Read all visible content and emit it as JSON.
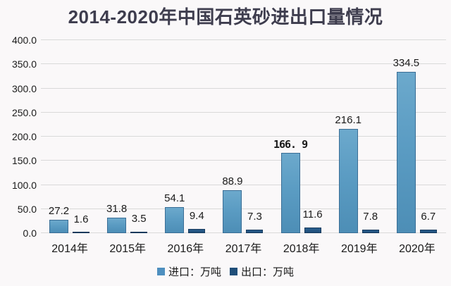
{
  "title": "2014-2020年中国石英砂进出口量情况",
  "colors": {
    "background": "#FAF8F9",
    "title_text": "#3E3D4E",
    "label_text": "#1A1A1A",
    "gridline": "#D9D9D9",
    "import_bar": "#5B9CC3",
    "import_border": "#3A6E96",
    "export_bar": "#1F4E79",
    "export_border": "#16395C"
  },
  "chart_data": {
    "type": "bar",
    "title": "2014-2020年中国石英砂进出口量情况",
    "categories": [
      "2014年",
      "2015年",
      "2016年",
      "2017年",
      "2018年",
      "2019年",
      "2020年"
    ],
    "series": [
      {
        "name": "进口：万吨",
        "values": [
          27.2,
          31.8,
          54.1,
          88.9,
          166.9,
          216.1,
          334.5
        ],
        "labels": [
          "27.2",
          "31.8",
          "54.1",
          "88.9",
          "166. 9",
          "216.1",
          "334.5"
        ]
      },
      {
        "name": "出口：万吨",
        "values": [
          1.6,
          3.5,
          9.4,
          7.3,
          11.6,
          7.8,
          6.7
        ],
        "labels": [
          "1.6",
          "3.5",
          "9.4",
          "7.3",
          "11.6",
          "7.8",
          "6.7"
        ]
      }
    ],
    "xlabel": "",
    "ylabel": "",
    "ylim": [
      0,
      400
    ],
    "ytick_step": 50,
    "ytick_labels": [
      "0.0",
      "50.0",
      "100.0",
      "150.0",
      "200.0",
      "250.0",
      "300.0",
      "350.0",
      "400.0"
    ],
    "grid": true,
    "legend_position": "bottom",
    "highlighted_label": {
      "series": 0,
      "index": 4,
      "style": "bold-monospace"
    }
  },
  "legend": [
    {
      "label": "进口：万吨",
      "swatch_color": "#4E8FBF"
    },
    {
      "label": "出口：万吨",
      "swatch_color": "#1F4E79"
    }
  ]
}
